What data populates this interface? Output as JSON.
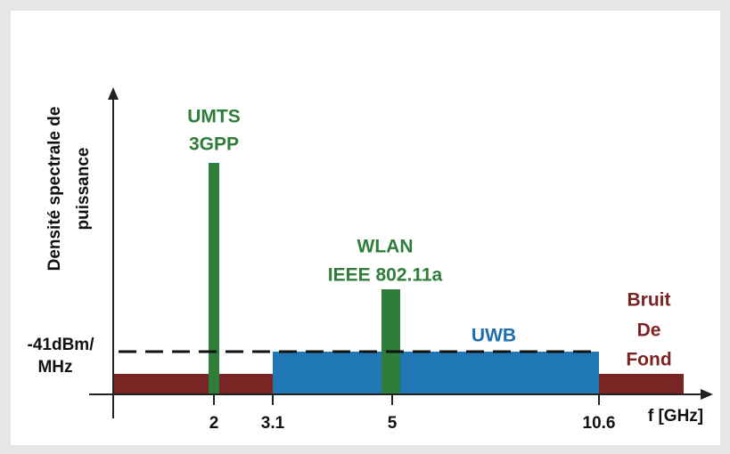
{
  "diagram": {
    "y_axis_label": [
      "Densité spectrale de",
      "puissance"
    ],
    "level_label": [
      "-41dBm/",
      "MHz"
    ],
    "x_axis_label": "f [GHz]",
    "x_ticks": [
      "2",
      "3.1",
      "5",
      "10.6"
    ],
    "umts_label": [
      "UMTS",
      "3GPP"
    ],
    "wlan_label": [
      "WLAN",
      "IEEE 802.11a"
    ],
    "uwb_label": "UWB",
    "noise_label": [
      "Bruit",
      "De",
      "Fond"
    ]
  }
}
